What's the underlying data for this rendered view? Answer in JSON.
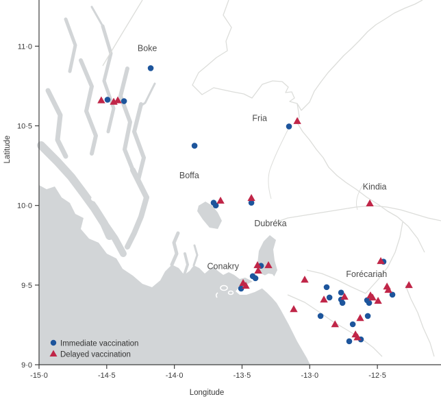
{
  "figure": {
    "kind": "map-scatter",
    "region": "Guinea coastal prefectures"
  },
  "axes": {
    "x": {
      "label": "Longitude",
      "range": [
        -15.0,
        -12.03
      ],
      "ticks": [
        {
          "value": -15.0,
          "label": "-15·0"
        },
        {
          "value": -14.5,
          "label": "-14·5"
        },
        {
          "value": -14.0,
          "label": "-14·0"
        },
        {
          "value": -13.5,
          "label": "-13·5"
        },
        {
          "value": -13.0,
          "label": "-13·0"
        },
        {
          "value": -12.5,
          "label": "-12·5"
        }
      ]
    },
    "y": {
      "label": "Latitude",
      "range": [
        9.0,
        11.29
      ],
      "ticks": [
        {
          "value": 9.0,
          "label": "9·0"
        },
        {
          "value": 9.5,
          "label": "9·5"
        },
        {
          "value": 10.0,
          "label": "10·0"
        },
        {
          "value": 10.5,
          "label": "10·5"
        },
        {
          "value": 11.0,
          "label": "11·0"
        }
      ]
    }
  },
  "legend": {
    "items": [
      {
        "label": "Immediate vaccination",
        "marker": "circle",
        "color": "#1d559c"
      },
      {
        "label": "Delayed vaccination",
        "marker": "triangle",
        "color": "#c02648"
      }
    ]
  },
  "place_labels": [
    {
      "name": "Boke",
      "lon": -14.2,
      "lat": 10.97
    },
    {
      "name": "Fria",
      "lon": -13.37,
      "lat": 10.53
    },
    {
      "name": "Boffa",
      "lon": -13.89,
      "lat": 10.17
    },
    {
      "name": "Kindia",
      "lon": -12.52,
      "lat": 10.1
    },
    {
      "name": "Dubréka",
      "lon": -13.29,
      "lat": 9.87
    },
    {
      "name": "Conakry",
      "lon": -13.64,
      "lat": 9.6
    },
    {
      "name": "Forécariah",
      "lon": -12.58,
      "lat": 9.55
    }
  ],
  "colors": {
    "sea": "#d2d5d7",
    "land": "#ffffff",
    "border_lines": "#dcddda",
    "axis": "#3d3d3d"
  },
  "chart_data": {
    "type": "scatter",
    "title": "",
    "xlabel": "Longitude",
    "ylabel": "Latitude",
    "xlim": [
      -15.0,
      -12.03
    ],
    "ylim": [
      9.0,
      11.29
    ],
    "legend_position": "bottom-left",
    "series": [
      {
        "name": "Immediate vaccination",
        "marker": "circle",
        "color": "#1d559c",
        "points": [
          [
            -14.494,
            10.664
          ],
          [
            -14.372,
            10.655
          ],
          [
            -14.175,
            10.862
          ],
          [
            -13.851,
            10.375
          ],
          [
            -13.153,
            10.496
          ],
          [
            -13.71,
            10.017
          ],
          [
            -13.694,
            10.0
          ],
          [
            -13.431,
            10.017
          ],
          [
            -13.36,
            9.621
          ],
          [
            -13.421,
            9.556
          ],
          [
            -13.401,
            9.543
          ],
          [
            -13.507,
            9.478
          ],
          [
            -12.455,
            9.647
          ],
          [
            -12.875,
            9.487
          ],
          [
            -12.854,
            9.422
          ],
          [
            -12.768,
            9.453
          ],
          [
            -12.768,
            9.409
          ],
          [
            -12.758,
            9.388
          ],
          [
            -12.389,
            9.44
          ],
          [
            -12.576,
            9.405
          ],
          [
            -12.561,
            9.388
          ],
          [
            -12.92,
            9.306
          ],
          [
            -12.571,
            9.306
          ],
          [
            -12.682,
            9.254
          ],
          [
            -12.622,
            9.159
          ],
          [
            -12.708,
            9.147
          ]
        ]
      },
      {
        "name": "Delayed vaccination",
        "marker": "triangle",
        "color": "#c02648",
        "points": [
          [
            -14.54,
            10.66
          ],
          [
            -14.448,
            10.651
          ],
          [
            -14.418,
            10.66
          ],
          [
            -13.092,
            10.53
          ],
          [
            -13.659,
            10.03
          ],
          [
            -13.431,
            10.047
          ],
          [
            -12.556,
            10.013
          ],
          [
            -13.386,
            9.625
          ],
          [
            -13.381,
            9.591
          ],
          [
            -13.305,
            9.625
          ],
          [
            -13.492,
            9.513
          ],
          [
            -13.472,
            9.496
          ],
          [
            -12.475,
            9.651
          ],
          [
            -13.037,
            9.534
          ],
          [
            -12.895,
            9.409
          ],
          [
            -12.743,
            9.427
          ],
          [
            -12.429,
            9.491
          ],
          [
            -12.419,
            9.47
          ],
          [
            -12.267,
            9.5
          ],
          [
            -12.551,
            9.435
          ],
          [
            -12.536,
            9.422
          ],
          [
            -12.495,
            9.401
          ],
          [
            -13.118,
            9.349
          ],
          [
            -12.627,
            9.293
          ],
          [
            -12.813,
            9.254
          ],
          [
            -12.662,
            9.19
          ],
          [
            -12.647,
            9.172
          ]
        ]
      }
    ]
  }
}
